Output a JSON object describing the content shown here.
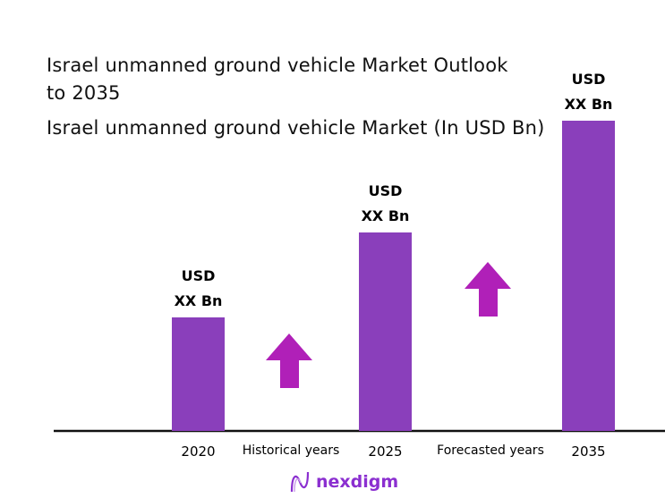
{
  "chart_data": {
    "type": "bar",
    "title": "Israel unmanned ground vehicle Market Outlook to 2035",
    "subtitle": "Israel unmanned ground vehicle Market (In USD Bn)",
    "categories": [
      "2020",
      "2025",
      "2035"
    ],
    "values": [
      null,
      null,
      null
    ],
    "data_labels": [
      [
        "USD",
        "XX Bn"
      ],
      [
        "USD",
        "XX Bn"
      ],
      [
        "USD",
        "XX Bn"
      ]
    ],
    "period_labels": [
      "Historical years",
      "Forecasted years"
    ],
    "trend": "increasing",
    "grid": false,
    "colors": {
      "bar": "#8a3fbb",
      "arrow": "#b020b8",
      "axis": "#111111"
    }
  },
  "logo": {
    "text": "nexdigm",
    "color": "#8b2fd0"
  }
}
